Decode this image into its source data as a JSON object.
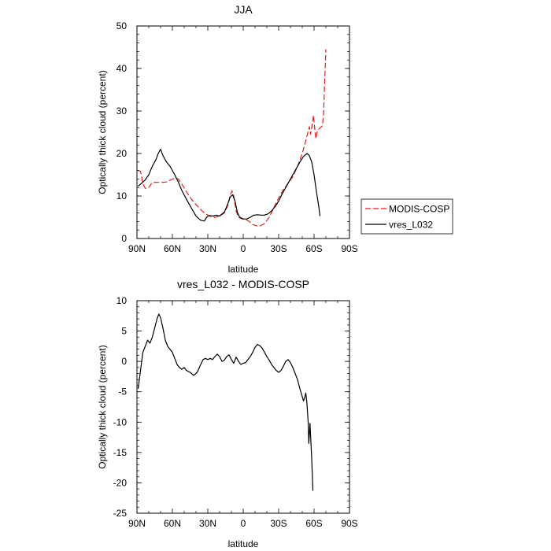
{
  "chart_data": [
    {
      "type": "line",
      "title": "JJA",
      "xlabel": "latitude",
      "ylabel": "Optically thick cloud (percent)",
      "xlim": [
        90,
        -90
      ],
      "ylim": [
        0,
        50
      ],
      "x_ticks": [
        {
          "value": 90,
          "label": "90N"
        },
        {
          "value": 60,
          "label": "60N"
        },
        {
          "value": 30,
          "label": "30N"
        },
        {
          "value": 0,
          "label": "0"
        },
        {
          "value": -30,
          "label": "30S"
        },
        {
          "value": -60,
          "label": "60S"
        },
        {
          "value": -90,
          "label": "90S"
        }
      ],
      "y_ticks": [
        {
          "value": 0,
          "label": "0"
        },
        {
          "value": 10,
          "label": "10"
        },
        {
          "value": 20,
          "label": "20"
        },
        {
          "value": 30,
          "label": "30"
        },
        {
          "value": 40,
          "label": "40"
        },
        {
          "value": 50,
          "label": "50"
        }
      ],
      "legend_position": "right",
      "series": [
        {
          "name": "MODIS-COSP",
          "color": "#e02020",
          "dash": "dashed",
          "points": [
            [
              89,
              16
            ],
            [
              87,
              15.8
            ],
            [
              85,
              13
            ],
            [
              83,
              11.8
            ],
            [
              80,
              12
            ],
            [
              77,
              13.2
            ],
            [
              73,
              13.2
            ],
            [
              69,
              13.2
            ],
            [
              65,
              13.3
            ],
            [
              62,
              13.7
            ],
            [
              58,
              14.2
            ],
            [
              55,
              14
            ],
            [
              52,
              12.8
            ],
            [
              48,
              11
            ],
            [
              44,
              9.3
            ],
            [
              40,
              8
            ],
            [
              36,
              6.8
            ],
            [
              32,
              5.8
            ],
            [
              28,
              5.2
            ],
            [
              24,
              5
            ],
            [
              20,
              5.3
            ],
            [
              16,
              6
            ],
            [
              13,
              7.8
            ],
            [
              11,
              10.3
            ],
            [
              9.5,
              11.2
            ],
            [
              8,
              10
            ],
            [
              6,
              6.5
            ],
            [
              4,
              5
            ],
            [
              1,
              4.6
            ],
            [
              -2,
              4.5
            ],
            [
              -5,
              4
            ],
            [
              -8,
              3.3
            ],
            [
              -11,
              3
            ],
            [
              -14,
              2.9
            ],
            [
              -18,
              3.5
            ],
            [
              -22,
              5
            ],
            [
              -26,
              7.3
            ],
            [
              -30,
              9.5
            ],
            [
              -34,
              11.5
            ],
            [
              -38,
              13
            ],
            [
              -42,
              14.5
            ],
            [
              -46,
              17
            ],
            [
              -50,
              20
            ],
            [
              -53,
              23
            ],
            [
              -56,
              26.3
            ],
            [
              -57,
              24.5
            ],
            [
              -58,
              26
            ],
            [
              -59.5,
              29
            ],
            [
              -60.5,
              26
            ],
            [
              -61.5,
              23.5
            ],
            [
              -63,
              25.5
            ],
            [
              -65,
              26
            ],
            [
              -67,
              26.5
            ],
            [
              -68,
              29
            ],
            [
              -69,
              37
            ],
            [
              -70,
              44.5
            ]
          ]
        },
        {
          "name": "vres_L032",
          "color": "#000000",
          "dash": "solid",
          "points": [
            [
              89,
              12.3
            ],
            [
              86,
              13
            ],
            [
              83,
              13.8
            ],
            [
              80,
              15
            ],
            [
              77,
              17
            ],
            [
              74,
              18.5
            ],
            [
              72,
              20
            ],
            [
              70,
              21
            ],
            [
              68,
              19.5
            ],
            [
              65,
              18
            ],
            [
              62,
              17
            ],
            [
              58,
              15
            ],
            [
              55,
              13.3
            ],
            [
              52,
              11.3
            ],
            [
              48,
              9.2
            ],
            [
              44,
              7.2
            ],
            [
              40,
              5.3
            ],
            [
              36,
              4.3
            ],
            [
              33,
              4.1
            ],
            [
              31,
              5
            ],
            [
              29,
              5.4
            ],
            [
              26,
              5.3
            ],
            [
              23,
              5.5
            ],
            [
              20,
              5.3
            ],
            [
              16,
              6.2
            ],
            [
              13,
              8.2
            ],
            [
              11,
              9.8
            ],
            [
              9,
              10.3
            ],
            [
              7,
              8.8
            ],
            [
              5,
              6.2
            ],
            [
              3,
              5
            ],
            [
              0,
              4.6
            ],
            [
              -3,
              4.6
            ],
            [
              -6,
              5
            ],
            [
              -9,
              5.5
            ],
            [
              -12,
              5.6
            ],
            [
              -15,
              5.5
            ],
            [
              -18,
              5.5
            ],
            [
              -21,
              5.8
            ],
            [
              -24,
              6.5
            ],
            [
              -27,
              7.5
            ],
            [
              -30,
              8.8
            ],
            [
              -33,
              10.5
            ],
            [
              -36,
              12
            ],
            [
              -39,
              13.5
            ],
            [
              -42,
              15
            ],
            [
              -45,
              16.5
            ],
            [
              -48,
              18
            ],
            [
              -51,
              19.3
            ],
            [
              -54,
              20
            ],
            [
              -56,
              19.5
            ],
            [
              -58,
              18
            ],
            [
              -60,
              15
            ],
            [
              -62,
              11
            ],
            [
              -64,
              7.5
            ],
            [
              -65,
              5.3
            ]
          ]
        }
      ]
    },
    {
      "type": "line",
      "title": "vres_L032 - MODIS-COSP",
      "xlabel": "latitude",
      "ylabel": "Optically thick cloud (percent)",
      "xlim": [
        90,
        -90
      ],
      "ylim": [
        -25,
        10
      ],
      "x_ticks": [
        {
          "value": 90,
          "label": "90N"
        },
        {
          "value": 60,
          "label": "60N"
        },
        {
          "value": 30,
          "label": "30N"
        },
        {
          "value": 0,
          "label": "0"
        },
        {
          "value": -30,
          "label": "30S"
        },
        {
          "value": -60,
          "label": "60S"
        },
        {
          "value": -90,
          "label": "90S"
        }
      ],
      "y_ticks": [
        {
          "value": -25,
          "label": "-25"
        },
        {
          "value": -20,
          "label": "-20"
        },
        {
          "value": -15,
          "label": "-15"
        },
        {
          "value": -10,
          "label": "-10"
        },
        {
          "value": -5,
          "label": "-5"
        },
        {
          "value": 0,
          "label": "0"
        },
        {
          "value": 5,
          "label": "5"
        },
        {
          "value": 10,
          "label": "10"
        }
      ],
      "series": [
        {
          "name": "vres_L032 - MODIS-COSP",
          "color": "#000000",
          "dash": "solid",
          "points": [
            [
              89,
              -4.5
            ],
            [
              87,
              -1.5
            ],
            [
              85,
              1.5
            ],
            [
              83,
              2.5
            ],
            [
              81,
              3.5
            ],
            [
              79,
              3
            ],
            [
              77,
              4
            ],
            [
              75,
              5.5
            ],
            [
              73,
              7
            ],
            [
              71.5,
              7.8
            ],
            [
              70,
              7.2
            ],
            [
              68,
              5.5
            ],
            [
              66,
              3.5
            ],
            [
              64,
              2.5
            ],
            [
              62,
              2
            ],
            [
              60,
              1.5
            ],
            [
              58,
              0.5
            ],
            [
              56,
              -0.5
            ],
            [
              54,
              -1
            ],
            [
              52,
              -1.3
            ],
            [
              50,
              -1
            ],
            [
              48,
              -1.5
            ],
            [
              45,
              -1.8
            ],
            [
              42,
              -2.3
            ],
            [
              39,
              -1.8
            ],
            [
              36,
              -0.5
            ],
            [
              34,
              0.3
            ],
            [
              32,
              0.5
            ],
            [
              30,
              0.3
            ],
            [
              28,
              0.5
            ],
            [
              26,
              0.3
            ],
            [
              24,
              0.8
            ],
            [
              22,
              1.2
            ],
            [
              20,
              0.8
            ],
            [
              18,
              0
            ],
            [
              16,
              0.2
            ],
            [
              14,
              0.8
            ],
            [
              12,
              1.1
            ],
            [
              10,
              0.3
            ],
            [
              8,
              -0.3
            ],
            [
              6,
              0.7
            ],
            [
              4,
              0
            ],
            [
              2,
              -0.5
            ],
            [
              0,
              -0.3
            ],
            [
              -2,
              -0.2
            ],
            [
              -4,
              0.3
            ],
            [
              -6,
              0.8
            ],
            [
              -8,
              1.5
            ],
            [
              -10,
              2.3
            ],
            [
              -12,
              2.8
            ],
            [
              -14,
              2.6
            ],
            [
              -16,
              2.2
            ],
            [
              -18,
              1.5
            ],
            [
              -20,
              0.8
            ],
            [
              -22,
              0.2
            ],
            [
              -24,
              -0.5
            ],
            [
              -26,
              -1
            ],
            [
              -28,
              -1.5
            ],
            [
              -30,
              -1.8
            ],
            [
              -32,
              -1.5
            ],
            [
              -34,
              -0.8
            ],
            [
              -36,
              0
            ],
            [
              -38,
              0.3
            ],
            [
              -40,
              -0.2
            ],
            [
              -42,
              -1
            ],
            [
              -44,
              -2
            ],
            [
              -46,
              -3
            ],
            [
              -48,
              -4.5
            ],
            [
              -50,
              -5.8
            ],
            [
              -51,
              -6.5
            ],
            [
              -52,
              -6
            ],
            [
              -53,
              -5.2
            ],
            [
              -54,
              -7
            ],
            [
              -55,
              -10
            ],
            [
              -55.5,
              -13.5
            ],
            [
              -56,
              -12
            ],
            [
              -56.5,
              -10.2
            ],
            [
              -57,
              -12
            ],
            [
              -58,
              -16
            ],
            [
              -59,
              -21.3
            ]
          ]
        }
      ]
    }
  ]
}
